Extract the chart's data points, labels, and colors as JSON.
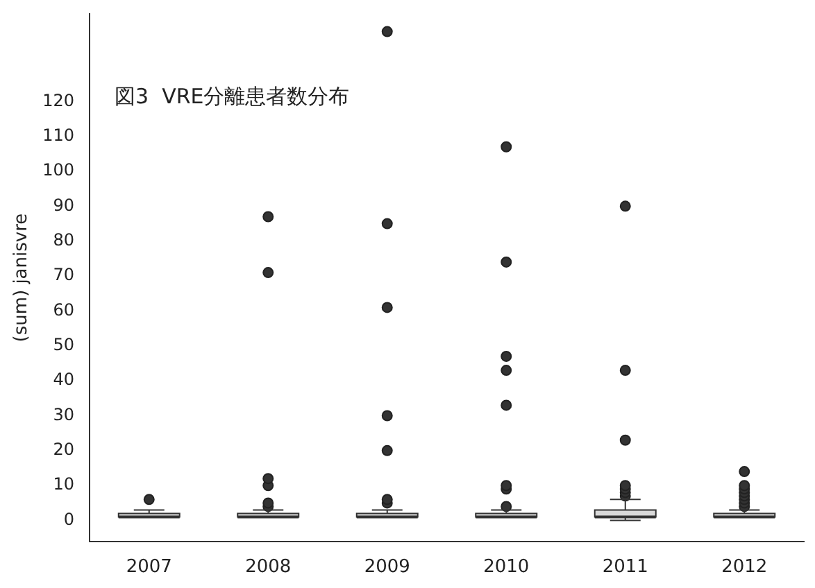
{
  "chart_data": {
    "type": "box",
    "title": "図3  VRE分離患者数分布",
    "ylabel": "(sum) janisvre",
    "categories": [
      "2007",
      "2008",
      "2009",
      "2010",
      "2011",
      "2012"
    ],
    "ylim": [
      -6,
      145
    ],
    "yticks": [
      0,
      10,
      20,
      30,
      40,
      50,
      60,
      70,
      80,
      90,
      100,
      110,
      120
    ],
    "grid": false,
    "series": [
      {
        "color": "#d9d9d9",
        "boxes": [
          {
            "low": 1,
            "q1": 1,
            "median": 1,
            "q3": 2,
            "high": 3,
            "outliers": [
              6
            ]
          },
          {
            "low": 1,
            "q1": 1,
            "median": 1,
            "q3": 2,
            "high": 3,
            "outliers": [
              4,
              5,
              10,
              12,
              71,
              87
            ]
          },
          {
            "low": 1,
            "q1": 1,
            "median": 1,
            "q3": 2,
            "high": 3,
            "outliers": [
              5,
              6,
              20,
              30,
              61,
              85,
              140
            ]
          },
          {
            "low": 1,
            "q1": 1,
            "median": 1,
            "q3": 2,
            "high": 3,
            "outliers": [
              4,
              9,
              10,
              33,
              43,
              47,
              74,
              107
            ]
          },
          {
            "low": 0,
            "q1": 1,
            "median": 1,
            "q3": 3,
            "high": 6,
            "outliers": [
              7,
              8,
              9,
              10,
              23,
              43,
              90
            ]
          },
          {
            "low": 1,
            "q1": 1,
            "median": 1,
            "q3": 2,
            "high": 3,
            "outliers": [
              4,
              5,
              6,
              7,
              8,
              9,
              10,
              14
            ]
          }
        ]
      }
    ],
    "marker": "circle"
  }
}
